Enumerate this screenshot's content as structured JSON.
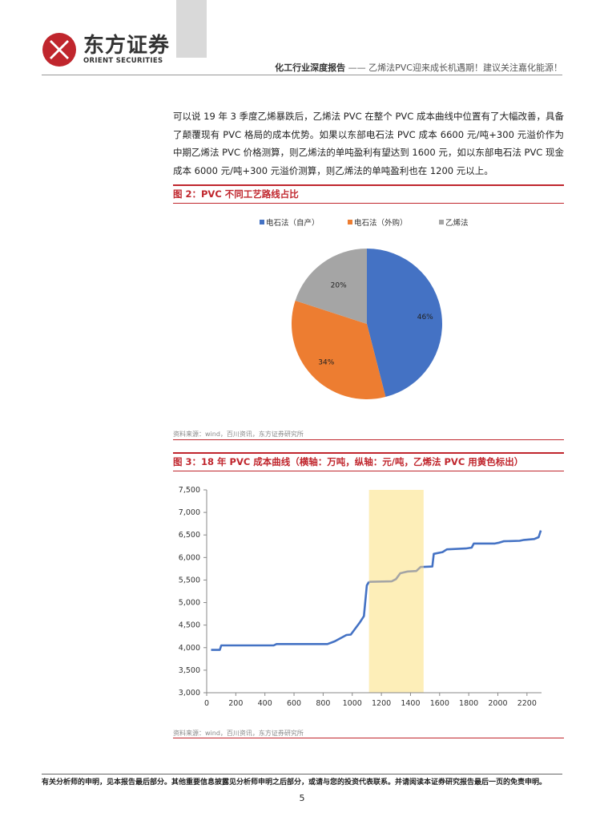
{
  "header": {
    "logo_cn": "东方证券",
    "logo_en": "ORIENT SECURITIES",
    "report_type": "化工行业深度报告",
    "report_subtitle": "—— 乙烯法PVC迎来成长机遇期！建议关注嘉化能源！"
  },
  "colors": {
    "accent": "#c0262d",
    "blue": "#4472c4",
    "orange": "#ed7d31",
    "gray": "#a5a5a5",
    "highlight": "#fdeeb8"
  },
  "body": {
    "paragraph": "可以说 19 年 3 季度乙烯暴跌后，乙烯法 PVC 在整个 PVC 成本曲线中位置有了大幅改善，具备了颠覆现有 PVC 格局的成本优势。如果以东部电石法 PVC 成本 6600 元/吨+300 元溢价作为中期乙烯法 PVC 价格测算，则乙烯法的单吨盈利有望达到 1600 元，如以东部电石法 PVC 现金成本 6000 元/吨+300 元溢价测算，则乙烯法的单吨盈利也在 1200 元以上。"
  },
  "figure2": {
    "title": "图 2：PVC 不同工艺路线占比",
    "source": "资料来源：wind，百川资讯，东方证券研究所"
  },
  "figure3": {
    "title": "图 3：18 年 PVC 成本曲线（横轴：万吨，纵轴：元/吨，乙烯法 PVC 用黄色标出）",
    "source": "资料来源：wind，百川资讯，东方证券研究所"
  },
  "chart_data": [
    {
      "type": "pie",
      "legend_position": "top",
      "labels": [
        "电石法（自产）",
        "电石法（外购）",
        "乙烯法"
      ],
      "values": [
        46,
        34,
        20
      ],
      "value_labels": [
        "46%",
        "34%",
        "20%"
      ],
      "colors": [
        "#4472c4",
        "#ed7d31",
        "#a5a5a5"
      ]
    },
    {
      "type": "line",
      "xlim": [
        0,
        2300
      ],
      "ylim": [
        3000,
        7500
      ],
      "x_ticks": [
        "0",
        "200",
        "400",
        "600",
        "800",
        "1000",
        "1200",
        "1400",
        "1600",
        "1800",
        "2000",
        "2200"
      ],
      "y_ticks": [
        "3,000",
        "3,500",
        "4,000",
        "4,500",
        "5,000",
        "5,500",
        "6,000",
        "6,500",
        "7,000",
        "7,500"
      ],
      "highlight_x": [
        1115,
        1490
      ],
      "grid": false,
      "series": [
        {
          "color": "#4472c4",
          "points": [
            [
              30,
              3950
            ],
            [
              90,
              3950
            ],
            [
              100,
              4050
            ],
            [
              460,
              4050
            ],
            [
              480,
              4080
            ],
            [
              830,
              4080
            ],
            [
              880,
              4140
            ],
            [
              960,
              4280
            ],
            [
              990,
              4290
            ],
            [
              1050,
              4550
            ],
            [
              1080,
              4700
            ],
            [
              1100,
              5380
            ],
            [
              1115,
              5460
            ]
          ]
        },
        {
          "color": "#a5a5a5",
          "points": [
            [
              1115,
              5460
            ],
            [
              1270,
              5470
            ],
            [
              1300,
              5520
            ],
            [
              1330,
              5650
            ],
            [
              1380,
              5690
            ],
            [
              1440,
              5700
            ],
            [
              1470,
              5790
            ],
            [
              1490,
              5790
            ]
          ]
        },
        {
          "color": "#4472c4",
          "points": [
            [
              1490,
              5790
            ],
            [
              1550,
              5800
            ],
            [
              1560,
              6080
            ],
            [
              1620,
              6120
            ],
            [
              1650,
              6180
            ],
            [
              1780,
              6200
            ],
            [
              1820,
              6220
            ],
            [
              1835,
              6310
            ],
            [
              1980,
              6310
            ],
            [
              2010,
              6330
            ],
            [
              2040,
              6360
            ],
            [
              2150,
              6370
            ],
            [
              2180,
              6390
            ],
            [
              2250,
              6410
            ],
            [
              2280,
              6450
            ],
            [
              2295,
              6600
            ]
          ]
        }
      ]
    }
  ],
  "footer": {
    "note": "有关分析师的申明，见本报告最后部分。其他重要信息披露见分析师申明之后部分，或请与您的投资代表联系。并请阅读本证券研究报告最后一页的免责申明。",
    "page": "5"
  }
}
